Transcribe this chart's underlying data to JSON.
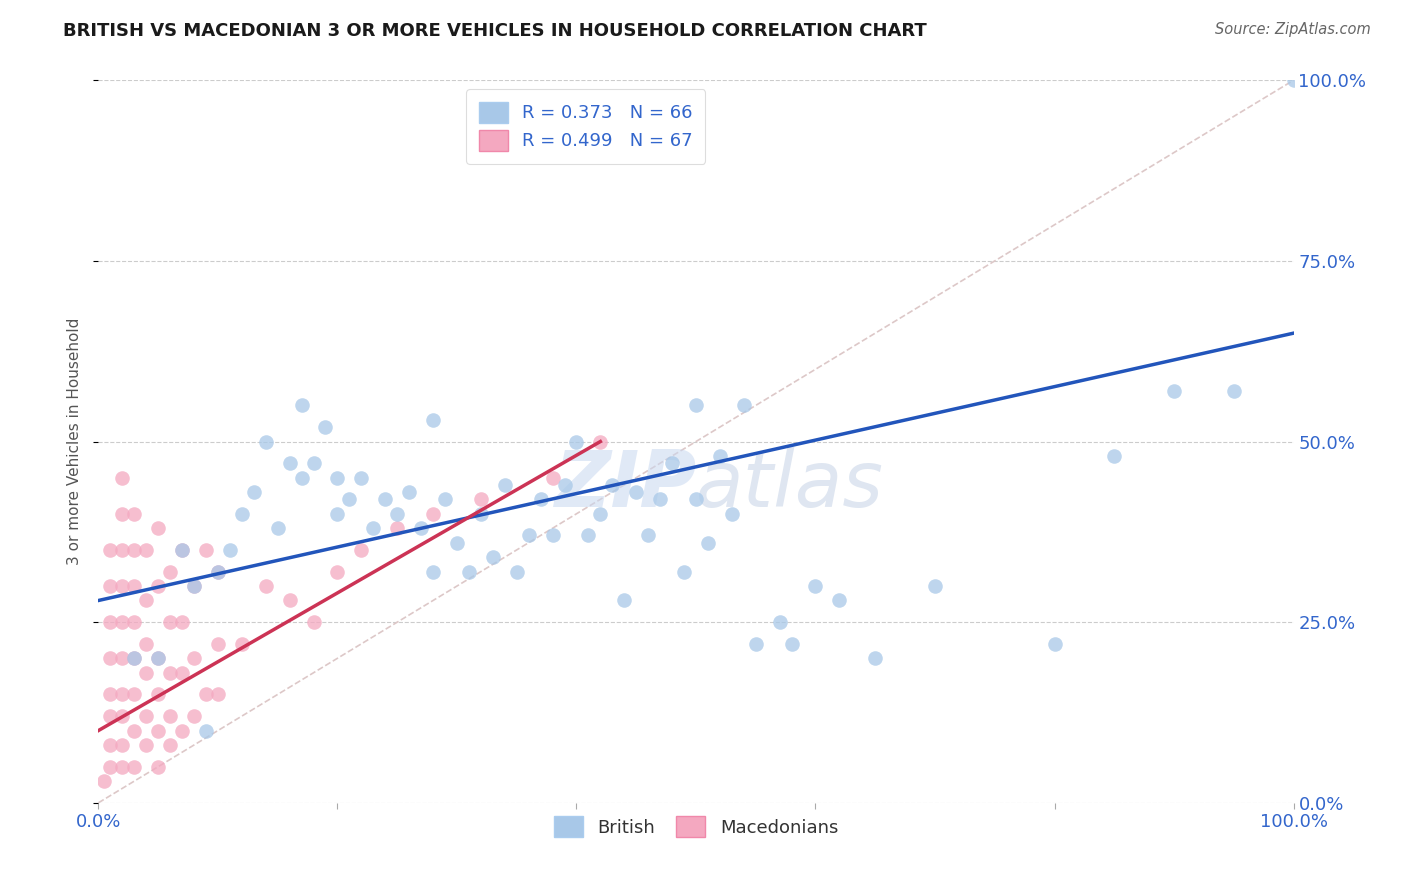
{
  "title": "BRITISH VS MACEDONIAN 3 OR MORE VEHICLES IN HOUSEHOLD CORRELATION CHART",
  "source": "Source: ZipAtlas.com",
  "ylabel": "3 or more Vehicles in Household",
  "watermark_zip": "ZIP",
  "watermark_atlas": "atlas",
  "british_R": 0.373,
  "british_N": 66,
  "macedonian_R": 0.499,
  "macedonian_N": 67,
  "british_color": "#a8c8e8",
  "macedonian_color": "#f4a8c0",
  "british_line_color": "#2255bb",
  "macedonian_line_color": "#cc3355",
  "diagonal_color": "#ddc8c8",
  "xlim": [
    0,
    100
  ],
  "ylim": [
    0,
    100
  ],
  "ytick_values": [
    0,
    25,
    50,
    75,
    100
  ],
  "ytick_labels": [
    "0.0%",
    "25.0%",
    "50.0%",
    "75.0%",
    "100.0%"
  ],
  "grid_color": "#cccccc",
  "background_color": "#ffffff",
  "british_line_x0": 0,
  "british_line_y0": 28,
  "british_line_x1": 100,
  "british_line_y1": 65,
  "macedonian_line_x0": 0,
  "macedonian_line_y0": 10,
  "macedonian_line_x1": 42,
  "macedonian_line_y1": 50,
  "british_points_x": [
    3,
    5,
    7,
    8,
    9,
    10,
    11,
    12,
    13,
    14,
    15,
    16,
    17,
    17,
    18,
    19,
    20,
    20,
    21,
    22,
    23,
    24,
    25,
    26,
    27,
    28,
    29,
    30,
    31,
    32,
    33,
    34,
    35,
    36,
    37,
    38,
    39,
    40,
    41,
    42,
    43,
    44,
    45,
    46,
    47,
    48,
    49,
    50,
    51,
    52,
    53,
    54,
    55,
    57,
    58,
    60,
    62,
    65,
    70,
    80,
    85,
    90,
    95,
    100,
    28,
    50
  ],
  "british_points_y": [
    20,
    20,
    35,
    30,
    10,
    32,
    35,
    40,
    43,
    50,
    38,
    47,
    45,
    55,
    47,
    52,
    40,
    45,
    42,
    45,
    38,
    42,
    40,
    43,
    38,
    32,
    42,
    36,
    32,
    40,
    34,
    44,
    32,
    37,
    42,
    37,
    44,
    50,
    37,
    40,
    44,
    28,
    43,
    37,
    42,
    47,
    32,
    42,
    36,
    48,
    40,
    55,
    22,
    25,
    22,
    30,
    28,
    20,
    30,
    22,
    48,
    57,
    57,
    100,
    53,
    55
  ],
  "macedonian_points_x": [
    0.5,
    1,
    1,
    1,
    1,
    1,
    1,
    1,
    1,
    2,
    2,
    2,
    2,
    2,
    2,
    2,
    2,
    2,
    2,
    3,
    3,
    3,
    3,
    3,
    3,
    3,
    3,
    4,
    4,
    4,
    4,
    4,
    4,
    5,
    5,
    5,
    5,
    5,
    5,
    6,
    6,
    6,
    6,
    6,
    7,
    7,
    7,
    7,
    8,
    8,
    8,
    9,
    9,
    10,
    10,
    10,
    12,
    14,
    16,
    18,
    20,
    22,
    25,
    28,
    32,
    38,
    42
  ],
  "macedonian_points_y": [
    3,
    5,
    8,
    12,
    15,
    20,
    25,
    30,
    35,
    5,
    8,
    12,
    15,
    20,
    25,
    30,
    35,
    40,
    45,
    5,
    10,
    15,
    20,
    25,
    30,
    35,
    40,
    8,
    12,
    18,
    22,
    28,
    35,
    5,
    10,
    15,
    20,
    30,
    38,
    8,
    12,
    18,
    25,
    32,
    10,
    18,
    25,
    35,
    12,
    20,
    30,
    15,
    35,
    15,
    22,
    32,
    22,
    30,
    28,
    25,
    32,
    35,
    38,
    40,
    42,
    45,
    50
  ]
}
